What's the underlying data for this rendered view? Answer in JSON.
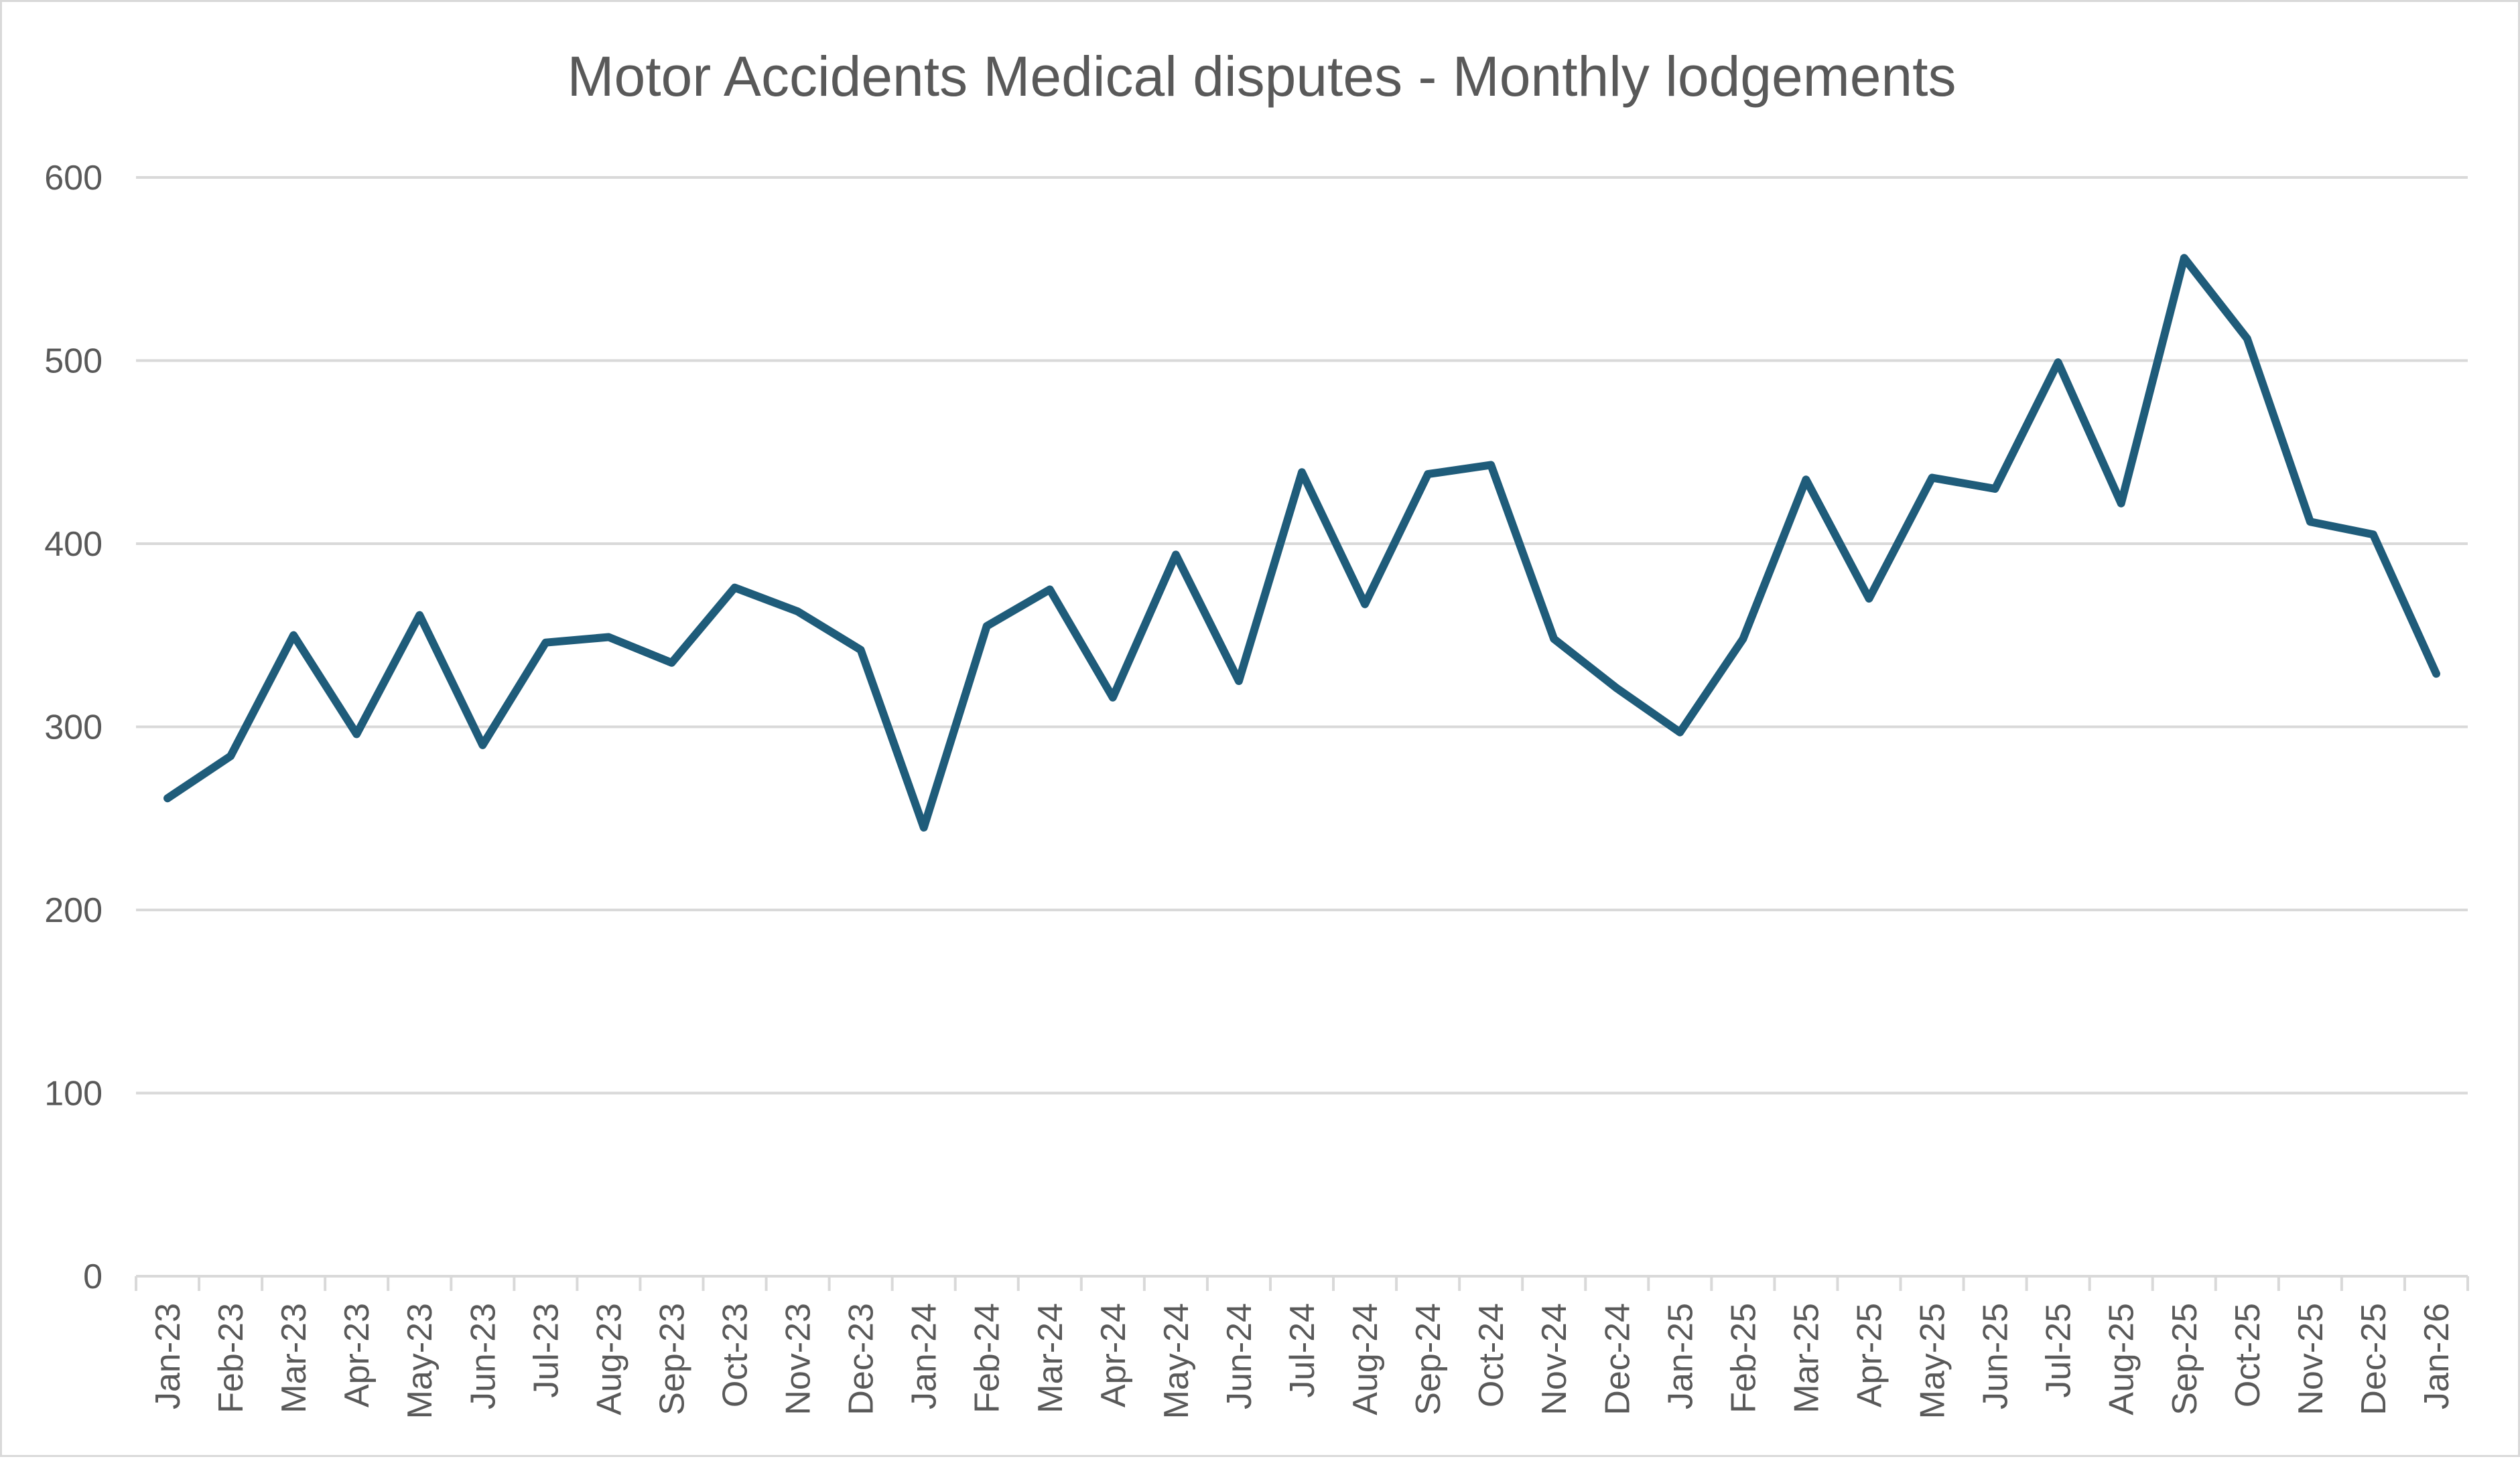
{
  "chart_data": {
    "type": "line",
    "title": "Motor Accidents Medical disputes - Monthly lodgements",
    "xlabel": "",
    "ylabel": "",
    "ylim": [
      0,
      600
    ],
    "yticks": [
      "0",
      "100",
      "200",
      "300",
      "400",
      "500",
      "600"
    ],
    "grid": true,
    "legend": "none",
    "categories": [
      "Jan-23",
      "Feb-23",
      "Mar-23",
      "Apr-23",
      "May-23",
      "Jun-23",
      "Jul-23",
      "Aug-23",
      "Sep-23",
      "Oct-23",
      "Nov-23",
      "Dec-23",
      "Jan-24",
      "Feb-24",
      "Mar-24",
      "Apr-24",
      "May-24",
      "Jun-24",
      "Jul-24",
      "Aug-24",
      "Sep-24",
      "Oct-24",
      "Nov-24",
      "Dec-24",
      "Jan-25",
      "Feb-25",
      "Mar-25",
      "Apr-25",
      "May-25",
      "Jun-25",
      "Jul-25",
      "Aug-25",
      "Sep-25",
      "Oct-25",
      "Nov-25",
      "Dec-25",
      "Jan-26"
    ],
    "series": [
      {
        "color": "#1f5c7a",
        "values": [
          261,
          284,
          350,
          296,
          361,
          290,
          346,
          349,
          335,
          376,
          363,
          342,
          245,
          355,
          375,
          316,
          394,
          325,
          439,
          367,
          438,
          443,
          348,
          321,
          297,
          348,
          435,
          370,
          436,
          430,
          499,
          422,
          556,
          512,
          412,
          405,
          329
        ]
      }
    ]
  }
}
